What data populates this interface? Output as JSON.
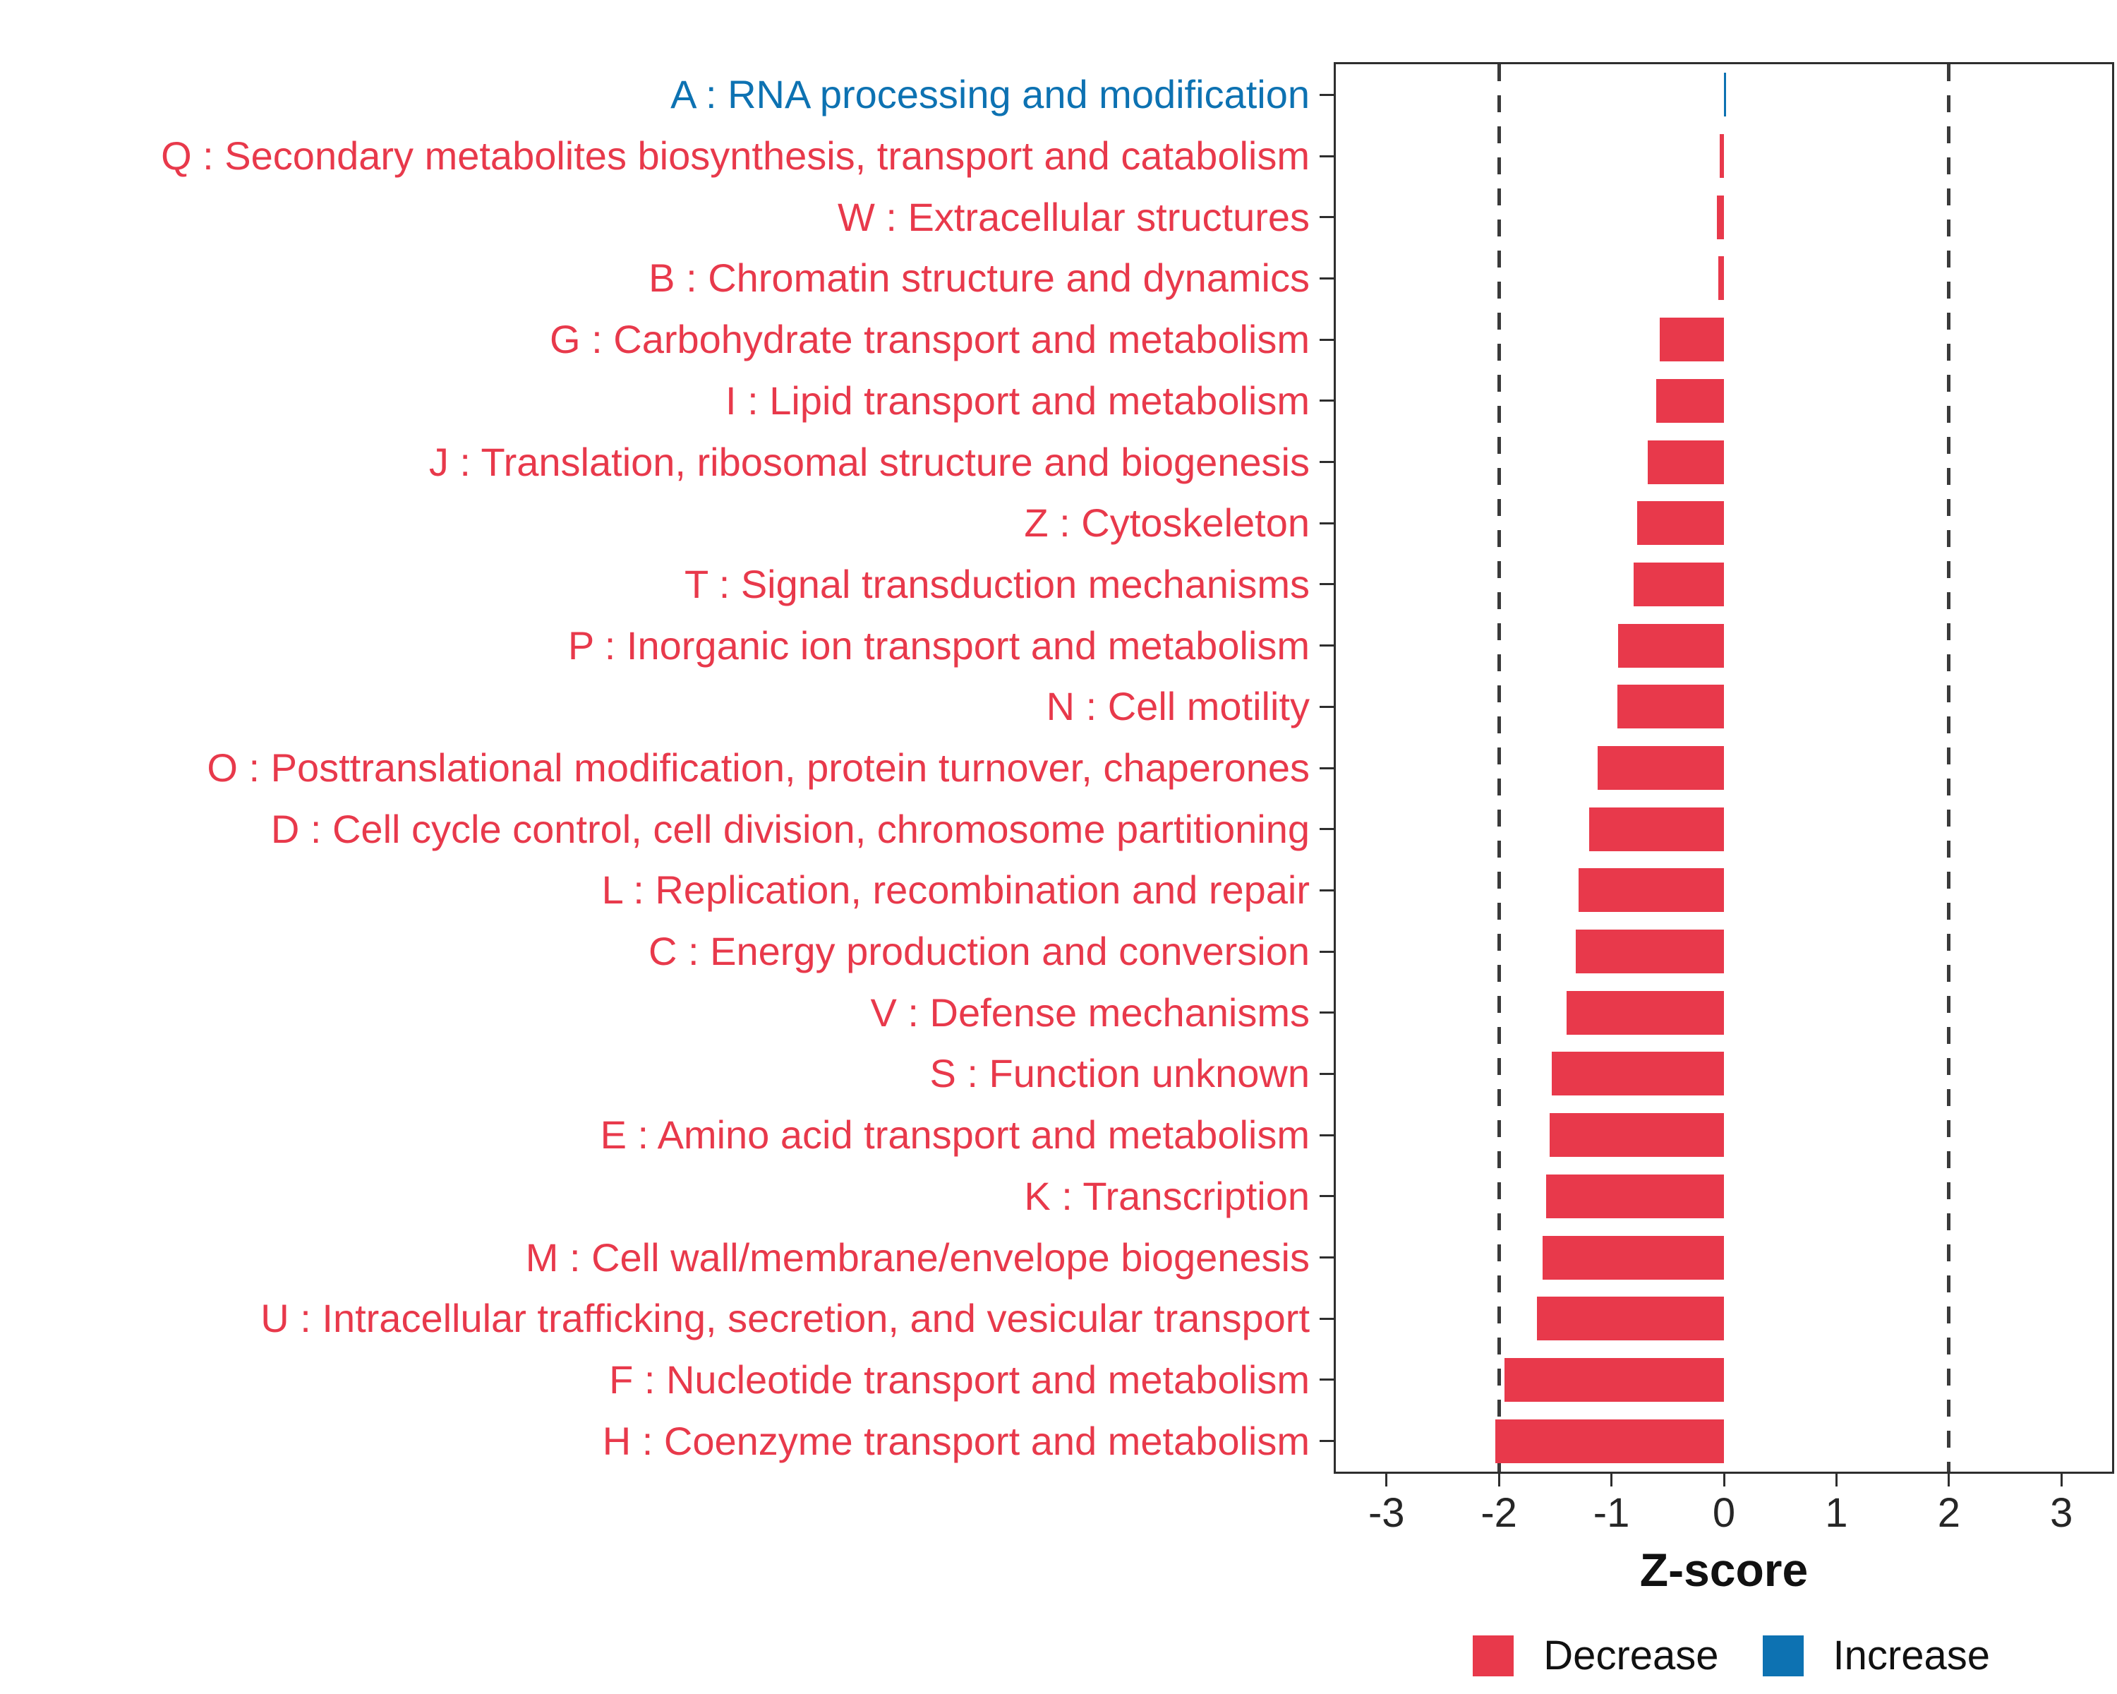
{
  "chart_data": {
    "type": "bar",
    "orientation": "horizontal",
    "title": "",
    "xlabel": "Z-score",
    "xlim": [
      -3.45,
      3.45
    ],
    "xticks": [
      -3,
      -2,
      -1,
      0,
      1,
      2,
      3
    ],
    "reference_lines": [
      -2,
      2
    ],
    "grid": false,
    "legend_position": "bottom-right",
    "colors": {
      "decrease": "#E8394B",
      "increase": "#0D72B2",
      "axis": "#2e2e2e",
      "axis_text": "#262626"
    },
    "legend": [
      {
        "label": "Decrease",
        "key": "decrease"
      },
      {
        "label": "Increase",
        "key": "increase"
      }
    ],
    "items": [
      {
        "label": "A : RNA processing and modification",
        "value": 0.02,
        "group": "increase"
      },
      {
        "label": "Q : Secondary metabolites biosynthesis, transport and catabolism",
        "value": -0.04,
        "group": "decrease"
      },
      {
        "label": "W : Extracellular structures",
        "value": -0.06,
        "group": "decrease"
      },
      {
        "label": "B : Chromatin structure and dynamics",
        "value": -0.05,
        "group": "decrease"
      },
      {
        "label": "G : Carbohydrate transport and metabolism",
        "value": -0.57,
        "group": "decrease"
      },
      {
        "label": "I : Lipid transport and metabolism",
        "value": -0.6,
        "group": "decrease"
      },
      {
        "label": "J : Translation, ribosomal structure and biogenesis",
        "value": -0.68,
        "group": "decrease"
      },
      {
        "label": "Z : Cytoskeleton",
        "value": -0.77,
        "group": "decrease"
      },
      {
        "label": "T : Signal transduction mechanisms",
        "value": -0.8,
        "group": "decrease"
      },
      {
        "label": "P : Inorganic ion transport and metabolism",
        "value": -0.94,
        "group": "decrease"
      },
      {
        "label": "N : Cell motility",
        "value": -0.95,
        "group": "decrease"
      },
      {
        "label": "O : Posttranslational modification, protein turnover, chaperones",
        "value": -1.12,
        "group": "decrease"
      },
      {
        "label": "D : Cell cycle control, cell division, chromosome partitioning",
        "value": -1.2,
        "group": "decrease"
      },
      {
        "label": "L : Replication, recombination and repair",
        "value": -1.29,
        "group": "decrease"
      },
      {
        "label": "C : Energy production and conversion",
        "value": -1.32,
        "group": "decrease"
      },
      {
        "label": "V : Defense mechanisms",
        "value": -1.4,
        "group": "decrease"
      },
      {
        "label": "S : Function unknown",
        "value": -1.53,
        "group": "decrease"
      },
      {
        "label": "E : Amino acid transport and metabolism",
        "value": -1.55,
        "group": "decrease"
      },
      {
        "label": "K : Transcription",
        "value": -1.58,
        "group": "decrease"
      },
      {
        "label": "M : Cell wall/membrane/envelope biogenesis",
        "value": -1.61,
        "group": "decrease"
      },
      {
        "label": "U : Intracellular trafficking, secretion, and vesicular transport",
        "value": -1.66,
        "group": "decrease"
      },
      {
        "label": "F : Nucleotide transport and metabolism",
        "value": -1.95,
        "group": "decrease"
      },
      {
        "label": "H : Coenzyme transport and metabolism",
        "value": -2.03,
        "group": "decrease"
      }
    ]
  }
}
